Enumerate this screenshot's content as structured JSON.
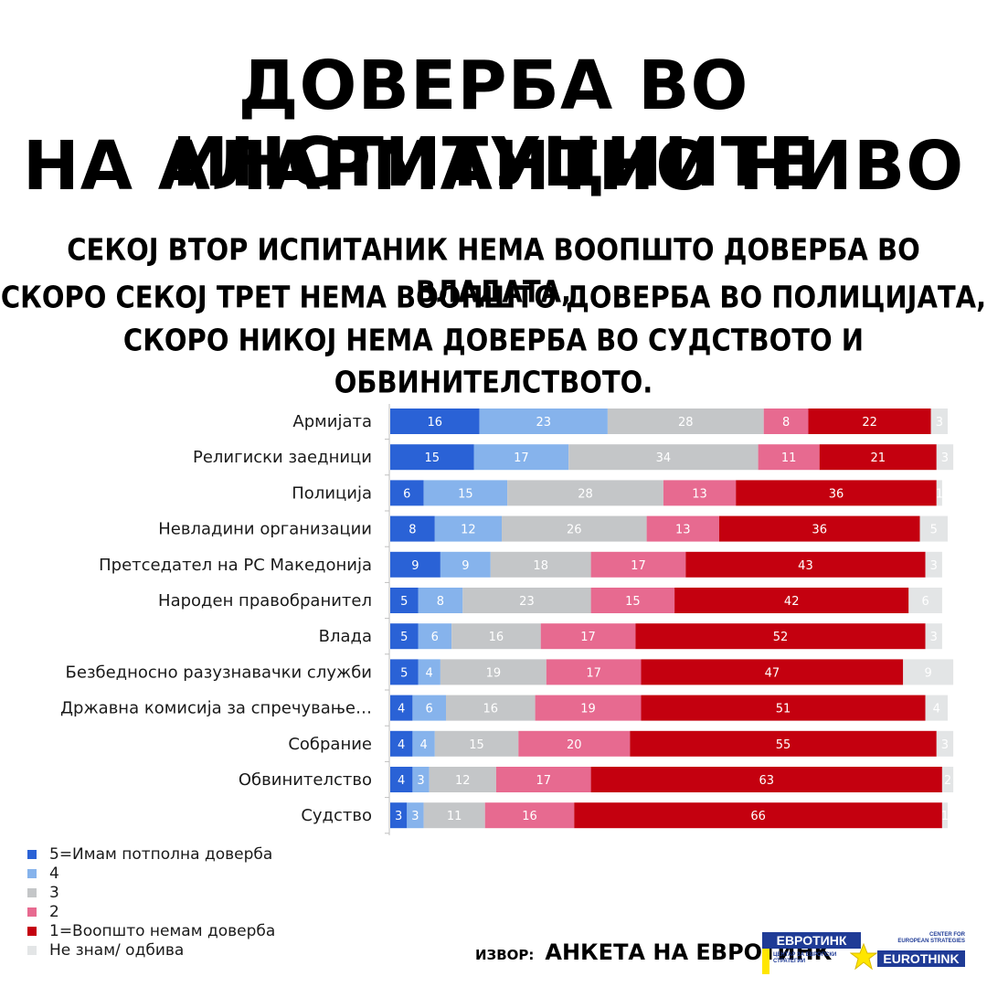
{
  "headline": {
    "line1": "ДОВЕРБА ВО ИНСТИТУЦИИТЕ",
    "line2": "НА АЛАРМАНТНО НИВО"
  },
  "subheadline": {
    "line1": "СЕКОЈ ВТОР ИСПИТАНИК НЕМА ВООПШТО ДОВЕРБА ВО ВЛАДАТА,",
    "line2": "СКОРО СЕКОЈ ТРЕТ НЕМА ВООПШТО ДОВЕРБА ВО ПОЛИЦИЈАТА,",
    "line3": "СКОРО НИКОЈ НЕМА ДОВЕРБА ВО СУДСТВОТО И ОБВИНИТЕЛСТВОТО."
  },
  "chart_data": {
    "type": "bar",
    "orientation": "horizontal",
    "stacked": true,
    "title": "",
    "xlabel": "",
    "ylabel": "",
    "xlim": [
      0,
      100
    ],
    "grid": false,
    "legend_placement": "bottom-left",
    "categories": [
      "Армијата",
      "Религиски заедници",
      "Полиција",
      "Невладини организации",
      "Претседател на РС Македонија",
      "Народен правобранител",
      "Влада",
      "Безбедносно разузнавачки служби",
      "Државна комисија за спречување…",
      "Собрание",
      "Обвинителство",
      "Судство"
    ],
    "series": [
      {
        "name": "5=Имам потполна доверба",
        "color": "#2a62d6",
        "label_color": "#ffffff",
        "values": [
          16,
          15,
          6,
          8,
          9,
          5,
          5,
          5,
          4,
          4,
          4,
          3
        ]
      },
      {
        "name": "4",
        "color": "#86b3ec",
        "label_color": "#ffffff",
        "values": [
          23,
          17,
          15,
          12,
          9,
          8,
          6,
          4,
          6,
          4,
          3,
          3
        ]
      },
      {
        "name": "3",
        "color": "#c4c6c8",
        "label_color": "#ffffff",
        "values": [
          28,
          34,
          28,
          26,
          18,
          23,
          16,
          19,
          16,
          15,
          12,
          11
        ]
      },
      {
        "name": "2",
        "color": "#e76a90",
        "label_color": "#ffffff",
        "values": [
          8,
          11,
          13,
          13,
          17,
          15,
          17,
          17,
          19,
          20,
          17,
          16
        ]
      },
      {
        "name": "1=Воопшто немам доверба",
        "color": "#c4000f",
        "label_color": "#ffffff",
        "values": [
          22,
          21,
          36,
          36,
          43,
          42,
          52,
          47,
          51,
          55,
          63,
          66
        ]
      },
      {
        "name": "Не знам/ одбива",
        "color": "#e3e5e6",
        "label_color": "#ffffff",
        "values": [
          3,
          3,
          1,
          5,
          3,
          6,
          3,
          9,
          4,
          3,
          2,
          1
        ]
      }
    ]
  },
  "source": {
    "prefix": "ИЗВОР:",
    "text": "АНКЕТА НА ЕВРОТИНК"
  },
  "logo": {
    "name_mk": "ЕВРОТИНК",
    "subtitle_mk": "ЦЕНТАР ЗА ЕВРОПСКИ СТРАТЕГИИ",
    "subtitle_en": "CENTER FOR EUROPEAN STRATEGIES",
    "name_en": "EUROTHINK"
  }
}
